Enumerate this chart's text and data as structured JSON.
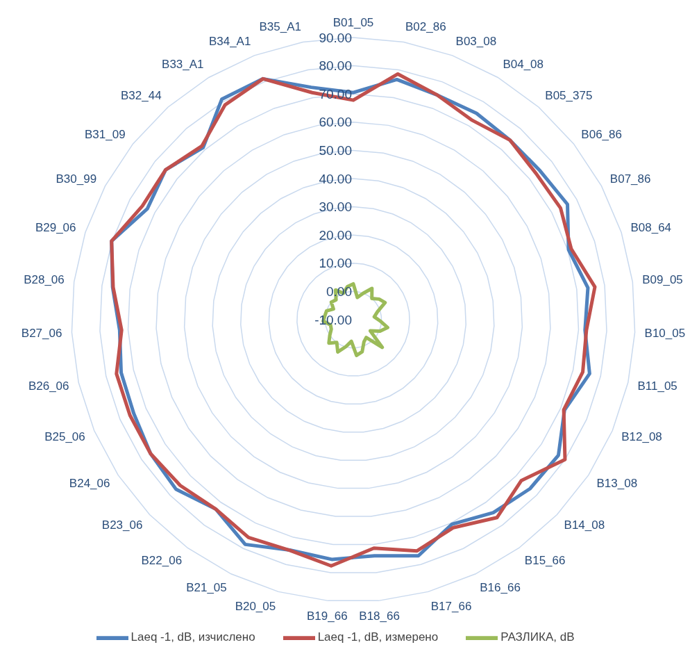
{
  "chart_data": {
    "type": "radar",
    "categories": [
      "B01_05",
      "B02_86",
      "B03_08",
      "B04_08",
      "B05_375",
      "B06_86",
      "B07_86",
      "B08_64",
      "B09_05",
      "B10_05",
      "B11_05",
      "B12_08",
      "B13_08",
      "B14_08",
      "B15_66",
      "B16_66",
      "B17_66",
      "B18_66",
      "B19_66",
      "B20_05",
      "B21_05",
      "B22_06",
      "B23_06",
      "B24_06",
      "B25_06",
      "B26_06",
      "B27_06",
      "B28_06",
      "B29_06",
      "B30_99",
      "B31_09",
      "B32_44",
      "B33_A1",
      "B34_A1",
      "B35_A1"
    ],
    "series": [
      {
        "name": "Laeq -1, dB, изчислено",
        "color": "#4f81bd",
        "values": [
          70.5,
          76.5,
          75,
          75.2,
          74.5,
          74.7,
          76.3,
          70.3,
          74,
          72.3,
          76,
          71.5,
          77.2,
          76.7,
          74.5,
          70.5,
          76.8,
          74,
          75.3,
          74.7,
          78.4,
          73,
          77,
          76.2,
          74.7,
          74.5,
          73,
          76.2,
          80.2,
          73,
          75.2,
          71,
          81,
          81.2,
          73.7
        ]
      },
      {
        "name": "Laeq -1, dB, измерено",
        "color": "#c0504d",
        "values": [
          67.8,
          78.5,
          75,
          72.3,
          74.5,
          73,
          73.5,
          71.3,
          76.5,
          72.8,
          73.5,
          71.2,
          80,
          72.5,
          76.7,
          71.8,
          75,
          71.3,
          77.6,
          74.8,
          75.7,
          73,
          75,
          76.2,
          76.2,
          76.2,
          72.3,
          76,
          80.2,
          75,
          75.2,
          71.7,
          78.7,
          81.2,
          71.8
        ]
      },
      {
        "name": "РАЗЛИКА, dB",
        "color": "#9bbb59",
        "values": [
          2.7,
          -2,
          0,
          2.9,
          0,
          1.7,
          2.8,
          -1,
          -2.5,
          -0.5,
          2.5,
          0.3,
          -2.8,
          4.2,
          -2.2,
          -1.3,
          1.8,
          2.7,
          -2.3,
          -0.1,
          2.7,
          0,
          2,
          0,
          -1.5,
          -1.7,
          0.7,
          0.2,
          0,
          -2,
          0,
          -0.7,
          2.3,
          0,
          1.9
        ]
      }
    ],
    "ylim": [
      -10,
      90
    ],
    "yticks": [
      {
        "value": -10,
        "label": "-10.00"
      },
      {
        "value": 0,
        "label": "0.00"
      },
      {
        "value": 10,
        "label": "10.00"
      },
      {
        "value": 20,
        "label": "20.00"
      },
      {
        "value": 30,
        "label": "30.00"
      },
      {
        "value": 40,
        "label": "40.00"
      },
      {
        "value": 50,
        "label": "50.00"
      },
      {
        "value": 60,
        "label": "60.00"
      },
      {
        "value": 70,
        "label": "70.00"
      },
      {
        "value": 80,
        "label": "80.00"
      },
      {
        "value": 90,
        "label": "90.00"
      }
    ],
    "grid": true,
    "legend": "bottom",
    "line_style": "solid"
  }
}
